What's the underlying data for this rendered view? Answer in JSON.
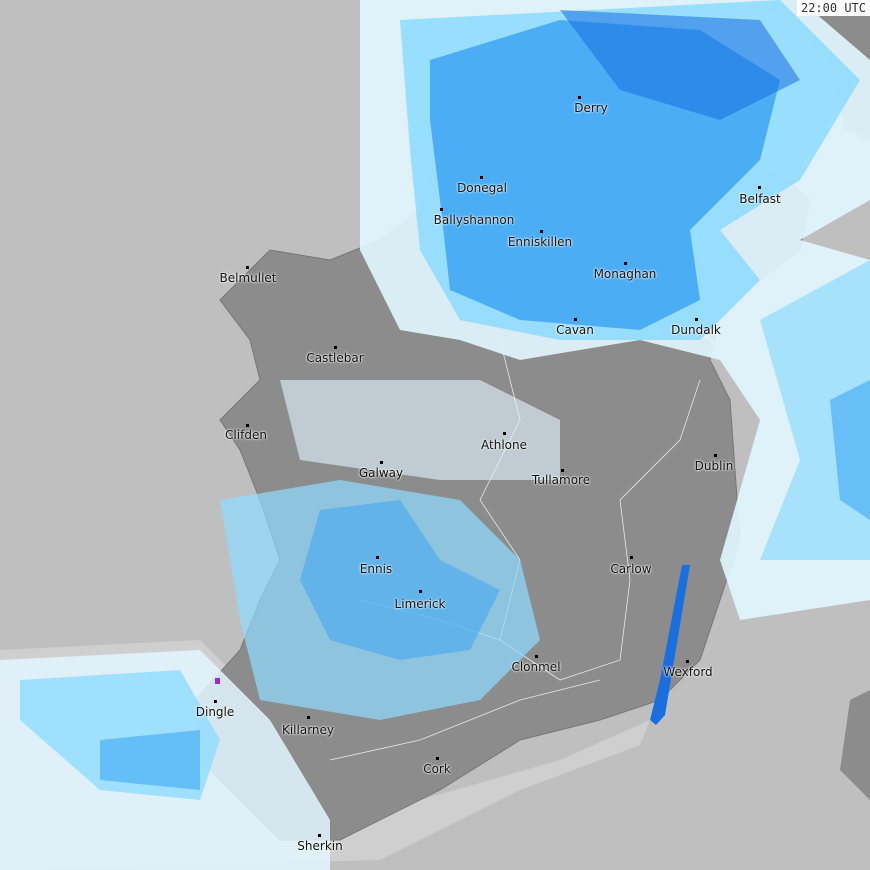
{
  "timestamp": "22:00 UTC",
  "colors": {
    "sea": "#bfbfbf",
    "land": "#8c8c8c",
    "land_light": "#a6a6a6",
    "border": "#ffffff",
    "rain_very_light": "#e2f6ff",
    "rain_light": "#8fdcff",
    "rain_moderate": "#3da6f2",
    "rain_heavy": "#1a6fe0",
    "rain_extreme": "#9a2ad8"
  },
  "cities": [
    {
      "name": "Derry"
    },
    {
      "name": "Donegal"
    },
    {
      "name": "Belfast"
    },
    {
      "name": "Ballyshannon"
    },
    {
      "name": "Enniskillen"
    },
    {
      "name": "Belmullet"
    },
    {
      "name": "Monaghan"
    },
    {
      "name": "Cavan"
    },
    {
      "name": "Dundalk"
    },
    {
      "name": "Castlebar"
    },
    {
      "name": "Clifden"
    },
    {
      "name": "Athlone"
    },
    {
      "name": "Dublin"
    },
    {
      "name": "Galway"
    },
    {
      "name": "Tullamore"
    },
    {
      "name": "Ennis"
    },
    {
      "name": "Carlow"
    },
    {
      "name": "Limerick"
    },
    {
      "name": "Clonmel"
    },
    {
      "name": "Wexford"
    },
    {
      "name": "Dingle"
    },
    {
      "name": "Killarney"
    },
    {
      "name": "Cork"
    },
    {
      "name": "Sherkin"
    }
  ]
}
